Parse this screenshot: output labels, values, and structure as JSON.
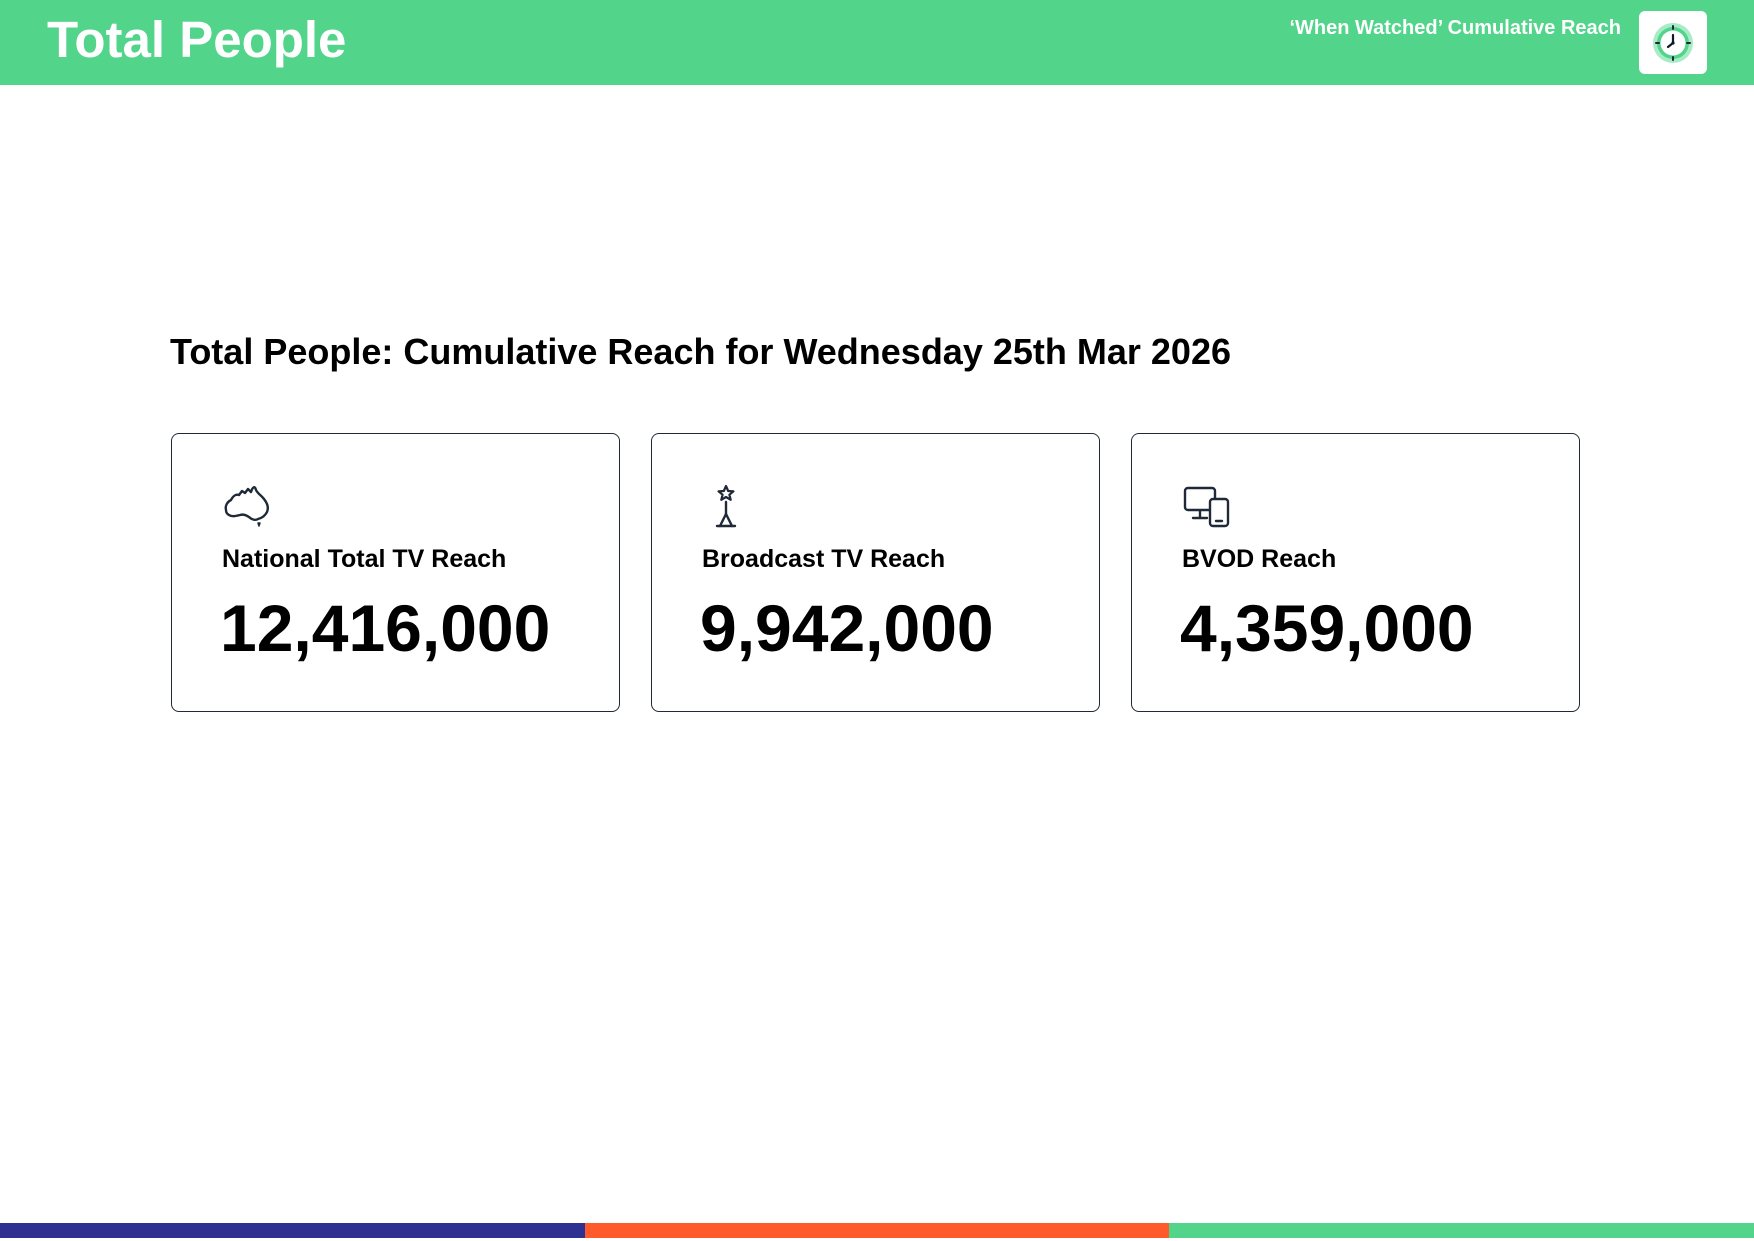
{
  "header": {
    "title": "Total People",
    "subtitle": "‘When Watched’ Cumulative Reach",
    "badge_icon": "clock-icon",
    "background_color": "#52d48b"
  },
  "main": {
    "heading": "Total People: Cumulative Reach for Wednesday 25th Mar 2026",
    "cards": [
      {
        "icon": "australia-map-icon",
        "label": "National Total TV Reach",
        "value": "12,416,000"
      },
      {
        "icon": "broadcast-tower-icon",
        "label": "Broadcast TV Reach",
        "value": "9,942,000"
      },
      {
        "icon": "devices-icon",
        "label": "BVOD Reach",
        "value": "4,359,000"
      }
    ]
  },
  "footer": {
    "bar_colors": [
      "#2e3192",
      "#ff5a2b",
      "#52d48b"
    ]
  }
}
